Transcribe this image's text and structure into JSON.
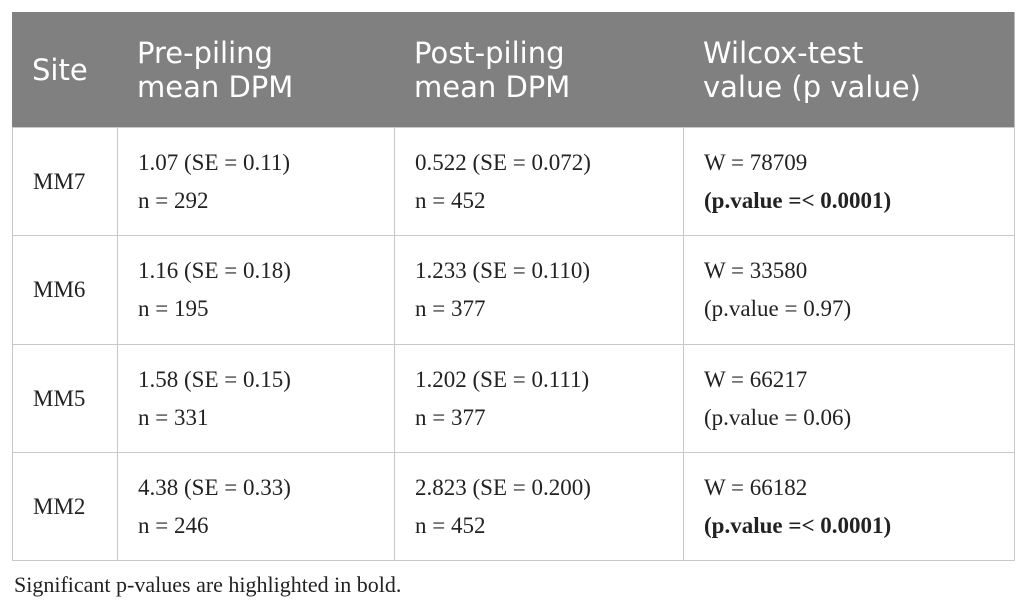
{
  "table": {
    "header": [
      [
        "Site"
      ],
      [
        "Pre-piling",
        "mean DPM"
      ],
      [
        "Post-piling",
        "mean DPM"
      ],
      [
        "Wilcox-test",
        "value (p value)"
      ]
    ],
    "rows": [
      {
        "site": "MM7",
        "pre": [
          "1.07 (SE = 0.11)",
          "n = 292"
        ],
        "post": [
          "0.522 (SE = 0.072)",
          "n = 452"
        ],
        "wilcox": [
          "W = 78709",
          "(p.value =< 0.0001)"
        ],
        "significant": true
      },
      {
        "site": "MM6",
        "pre": [
          "1.16 (SE = 0.18)",
          "n = 195"
        ],
        "post": [
          "1.233 (SE = 0.110)",
          "n = 377"
        ],
        "wilcox": [
          "W = 33580",
          "(p.value = 0.97)"
        ],
        "significant": false
      },
      {
        "site": "MM5",
        "pre": [
          "1.58 (SE = 0.15)",
          "n = 331"
        ],
        "post": [
          "1.202 (SE = 0.111)",
          "n = 377"
        ],
        "wilcox": [
          "W = 66217",
          "(p.value = 0.06)"
        ],
        "significant": false
      },
      {
        "site": "MM2",
        "pre": [
          "4.38 (SE = 0.33)",
          "n = 246"
        ],
        "post": [
          "2.823 (SE = 0.200)",
          "n = 452"
        ],
        "wilcox": [
          "W = 66182",
          "(p.value =< 0.0001)"
        ],
        "significant": true
      }
    ]
  },
  "footnote": "Significant p-values are highlighted in bold."
}
